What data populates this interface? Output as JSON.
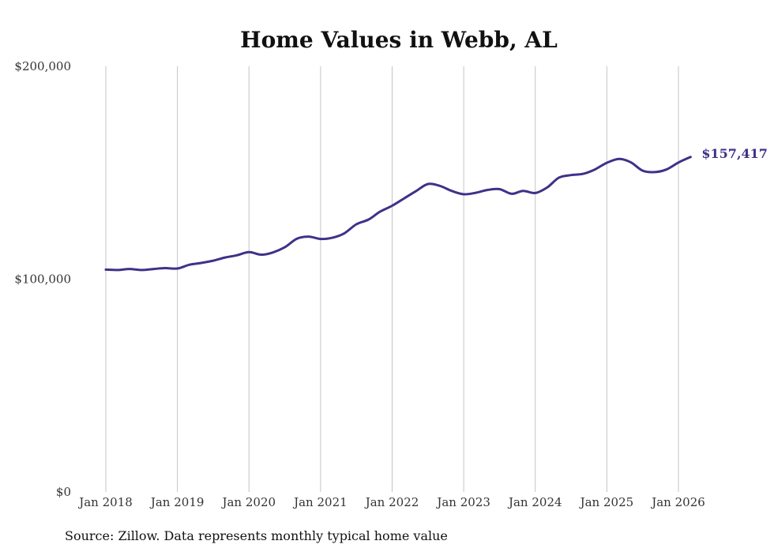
{
  "colors": {
    "line": "#3d3289",
    "grid": "#c4c4c4",
    "background": "#ffffff"
  },
  "chart_data": {
    "type": "line",
    "title": "Home Values in Webb, AL",
    "xlabel": "",
    "ylabel": "",
    "ylim": [
      0,
      200000
    ],
    "xlim": [
      2018,
      2026
    ],
    "yticks": [
      {
        "value": 0,
        "label": "$0"
      },
      {
        "value": 100000,
        "label": "$100,000"
      },
      {
        "value": 200000,
        "label": "$200,000"
      }
    ],
    "xticks": [
      {
        "value": 2018,
        "label": "Jan 2018"
      },
      {
        "value": 2019,
        "label": "Jan 2019"
      },
      {
        "value": 2020,
        "label": "Jan 2020"
      },
      {
        "value": 2021,
        "label": "Jan 2021"
      },
      {
        "value": 2022,
        "label": "Jan 2022"
      },
      {
        "value": 2023,
        "label": "Jan 2023"
      },
      {
        "value": 2024,
        "label": "Jan 2024"
      },
      {
        "value": 2025,
        "label": "Jan 2025"
      },
      {
        "value": 2026,
        "label": "Jan 2026"
      }
    ],
    "grid": "vertical",
    "series": [
      {
        "name": "Typical home value",
        "end_label": "$157,417",
        "points": [
          [
            2018.0,
            104500
          ],
          [
            2018.17,
            104300
          ],
          [
            2018.33,
            104800
          ],
          [
            2018.5,
            104300
          ],
          [
            2018.67,
            104800
          ],
          [
            2018.83,
            105200
          ],
          [
            2019.0,
            105000
          ],
          [
            2019.17,
            106800
          ],
          [
            2019.33,
            107600
          ],
          [
            2019.5,
            108700
          ],
          [
            2019.67,
            110200
          ],
          [
            2019.83,
            111200
          ],
          [
            2020.0,
            112700
          ],
          [
            2020.17,
            111500
          ],
          [
            2020.33,
            112500
          ],
          [
            2020.5,
            115000
          ],
          [
            2020.67,
            119000
          ],
          [
            2020.83,
            120000
          ],
          [
            2021.0,
            118900
          ],
          [
            2021.17,
            119500
          ],
          [
            2021.33,
            121500
          ],
          [
            2021.5,
            125800
          ],
          [
            2021.67,
            128000
          ],
          [
            2021.83,
            131700
          ],
          [
            2022.0,
            134500
          ],
          [
            2022.17,
            138000
          ],
          [
            2022.33,
            141300
          ],
          [
            2022.5,
            144700
          ],
          [
            2022.67,
            143800
          ],
          [
            2022.83,
            141500
          ],
          [
            2023.0,
            139900
          ],
          [
            2023.17,
            140600
          ],
          [
            2023.33,
            141900
          ],
          [
            2023.5,
            142300
          ],
          [
            2023.67,
            140100
          ],
          [
            2023.83,
            141500
          ],
          [
            2024.0,
            140500
          ],
          [
            2024.17,
            143200
          ],
          [
            2024.33,
            147700
          ],
          [
            2024.5,
            148900
          ],
          [
            2024.67,
            149500
          ],
          [
            2024.83,
            151500
          ],
          [
            2025.0,
            154700
          ],
          [
            2025.17,
            156500
          ],
          [
            2025.33,
            155000
          ],
          [
            2025.5,
            151000
          ],
          [
            2025.67,
            150300
          ],
          [
            2025.83,
            151500
          ],
          [
            2026.0,
            154800
          ],
          [
            2026.17,
            157417
          ]
        ]
      }
    ]
  },
  "footer": {
    "source": "Source: Zillow. Data represents monthly typical home value"
  }
}
